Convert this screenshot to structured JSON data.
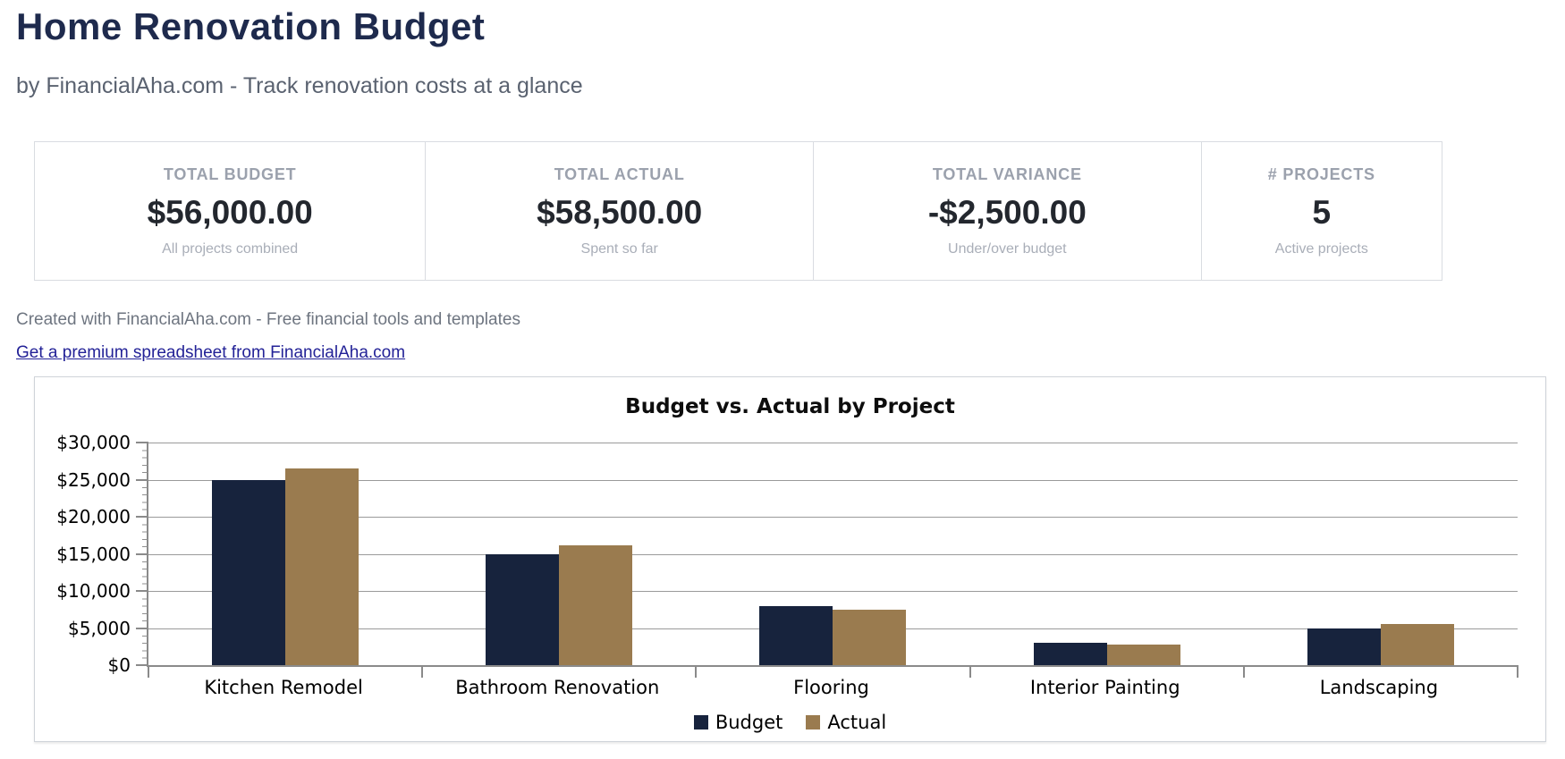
{
  "page": {
    "title": "Home Renovation Budget",
    "subtitle": "by FinancialAha.com - Track renovation costs at a glance",
    "credit_line": "Created with FinancialAha.com - Free financial tools and templates",
    "premium_link_label": "Get a premium spreadsheet from FinancialAha.com"
  },
  "colors": {
    "title_navy": "#1e2a4d",
    "budget_bar": "#17233d",
    "actual_bar": "#9a7b4f",
    "link_blue": "#232297",
    "gridline_gray": "#9a9a9a"
  },
  "stats": [
    {
      "label": "TOTAL BUDGET",
      "value": "$56,000.00",
      "caption": "All projects combined"
    },
    {
      "label": "TOTAL ACTUAL",
      "value": "$58,500.00",
      "caption": "Spent so far"
    },
    {
      "label": "TOTAL VARIANCE",
      "value": "-$2,500.00",
      "caption": "Under/over budget"
    },
    {
      "label": "# PROJECTS",
      "value": "5",
      "caption": "Active projects"
    }
  ],
  "chart_data": {
    "type": "bar",
    "title": "Budget vs. Actual by Project",
    "categories": [
      "Kitchen Remodel",
      "Bathroom Renovation",
      "Flooring",
      "Interior Painting",
      "Landscaping"
    ],
    "series": [
      {
        "name": "Budget",
        "color": "#17233d",
        "values": [
          25000,
          15000,
          8000,
          3000,
          5000
        ]
      },
      {
        "name": "Actual",
        "color": "#9a7b4f",
        "values": [
          26500,
          16200,
          7500,
          2800,
          5500
        ]
      }
    ],
    "xlabel": "",
    "ylabel": "",
    "ylim": [
      0,
      30000
    ],
    "ytick_step": 5000,
    "ytick_minor_step": 1000,
    "ytick_labels": [
      "$0",
      "$5,000",
      "$10,000",
      "$15,000",
      "$20,000",
      "$25,000",
      "$30,000"
    ],
    "grid": true,
    "legend_position": "bottom-center"
  }
}
